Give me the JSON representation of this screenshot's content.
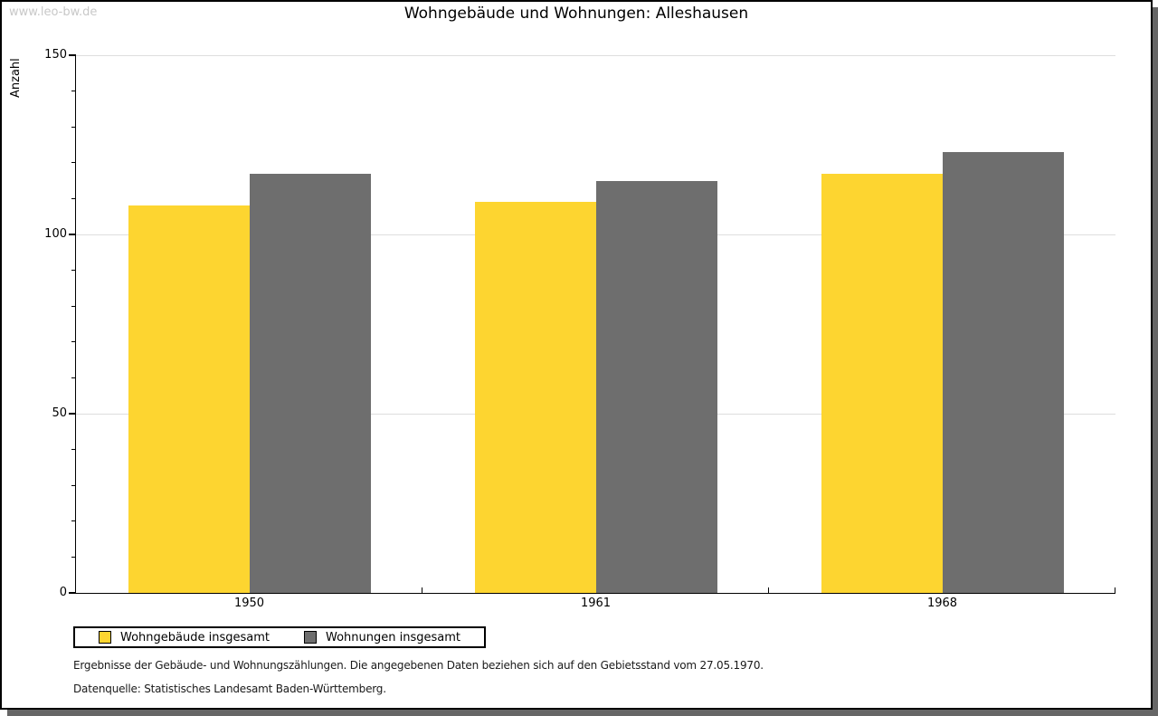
{
  "watermark": "www.leo-bw.de",
  "title": "Wohngebäude und Wohnungen: Alleshausen",
  "chart_data": {
    "type": "bar",
    "title": "Wohngebäude und Wohnungen: Alleshausen",
    "categories": [
      "1950",
      "1961",
      "1968"
    ],
    "series": [
      {
        "name": "Wohngebäude insgesamt",
        "color": "#fdd530",
        "values": [
          108,
          109,
          117
        ]
      },
      {
        "name": "Wohnungen insgesamt",
        "color": "#6e6e6e",
        "values": [
          117,
          115,
          123
        ]
      }
    ],
    "xlabel": "",
    "ylabel": "Anzahl",
    "ylim": [
      0,
      150
    ],
    "yticks": [
      0,
      50,
      100,
      150
    ],
    "minor_tick_step": 10,
    "grid": true,
    "legend_position": "bottom-left"
  },
  "footnotes": {
    "line1": "Ergebnisse der Gebäude- und Wohnungszählungen. Die angegebenen Daten beziehen sich auf den Gebietsstand vom 27.05.1970.",
    "line2": "Datenquelle: Statistisches Landesamt Baden-Württemberg."
  },
  "colors": {
    "bar_yellow": "#fdd530",
    "bar_gray": "#6e6e6e",
    "gridline": "#dedede",
    "axis": "#000000",
    "shadow": "#666666",
    "watermark_text": "#c8c8c8"
  }
}
